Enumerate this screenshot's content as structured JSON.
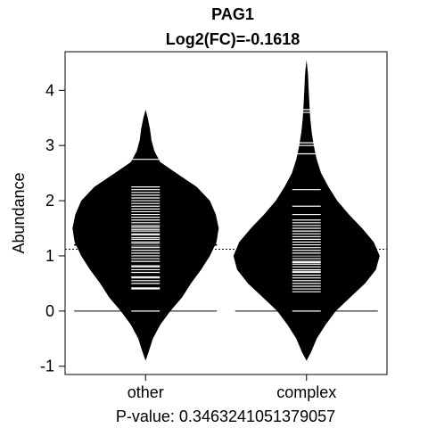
{
  "chart_data": {
    "type": "beanplot",
    "title": "PAG1",
    "subtitle": "Log2(FC)=-0.1618",
    "ylabel": "Abundance",
    "xlabel": "P-value: 0.3463241051379057",
    "ylim": [
      -1.15,
      4.7
    ],
    "yticks": [
      -1,
      0,
      1,
      2,
      3,
      4
    ],
    "overall_mean": 1.12,
    "categories": [
      "other",
      "complex"
    ],
    "groups": [
      {
        "name": "other",
        "mean": 1.2,
        "density": [
          [
            -0.9,
            0.0
          ],
          [
            -0.75,
            0.04
          ],
          [
            -0.5,
            0.1
          ],
          [
            -0.25,
            0.2
          ],
          [
            0.0,
            0.34
          ],
          [
            0.25,
            0.5
          ],
          [
            0.5,
            0.62
          ],
          [
            0.75,
            0.76
          ],
          [
            1.0,
            0.88
          ],
          [
            1.25,
            0.97
          ],
          [
            1.5,
            1.0
          ],
          [
            1.75,
            0.96
          ],
          [
            2.0,
            0.88
          ],
          [
            2.25,
            0.7
          ],
          [
            2.5,
            0.42
          ],
          [
            2.7,
            0.2
          ],
          [
            2.9,
            0.12
          ],
          [
            3.1,
            0.08
          ],
          [
            3.3,
            0.06
          ],
          [
            3.5,
            0.03
          ],
          [
            3.65,
            0.0
          ]
        ],
        "values": [
          0.0,
          0.4,
          0.42,
          0.5,
          0.55,
          0.6,
          0.62,
          0.7,
          0.75,
          0.8,
          0.82,
          0.9,
          0.95,
          1.0,
          1.05,
          1.1,
          1.15,
          1.18,
          1.22,
          1.25,
          1.3,
          1.33,
          1.38,
          1.4,
          1.45,
          1.48,
          1.52,
          1.55,
          1.6,
          1.65,
          1.7,
          1.75,
          1.8,
          1.85,
          1.9,
          1.95,
          2.0,
          2.05,
          2.1,
          2.15,
          2.2,
          2.25,
          2.75
        ]
      },
      {
        "name": "complex",
        "mean": 1.02,
        "density": [
          [
            -0.9,
            0.0
          ],
          [
            -0.75,
            0.06
          ],
          [
            -0.5,
            0.14
          ],
          [
            -0.25,
            0.26
          ],
          [
            0.0,
            0.4
          ],
          [
            0.25,
            0.6
          ],
          [
            0.5,
            0.8
          ],
          [
            0.75,
            0.95
          ],
          [
            1.0,
            1.0
          ],
          [
            1.25,
            0.92
          ],
          [
            1.5,
            0.76
          ],
          [
            1.75,
            0.58
          ],
          [
            2.0,
            0.42
          ],
          [
            2.25,
            0.3
          ],
          [
            2.5,
            0.2
          ],
          [
            2.75,
            0.14
          ],
          [
            3.0,
            0.1
          ],
          [
            3.25,
            0.07
          ],
          [
            3.5,
            0.05
          ],
          [
            3.75,
            0.04
          ],
          [
            4.0,
            0.03
          ],
          [
            4.3,
            0.02
          ],
          [
            4.55,
            0.0
          ]
        ],
        "values": [
          0.0,
          0.35,
          0.4,
          0.45,
          0.5,
          0.55,
          0.6,
          0.65,
          0.7,
          0.72,
          0.75,
          0.8,
          0.85,
          0.88,
          0.9,
          0.95,
          1.0,
          1.05,
          1.1,
          1.15,
          1.2,
          1.25,
          1.3,
          1.35,
          1.4,
          1.45,
          1.5,
          1.55,
          1.6,
          1.65,
          1.75,
          1.9,
          2.2,
          2.85,
          3.0,
          3.05,
          3.6,
          3.65
        ]
      }
    ]
  }
}
